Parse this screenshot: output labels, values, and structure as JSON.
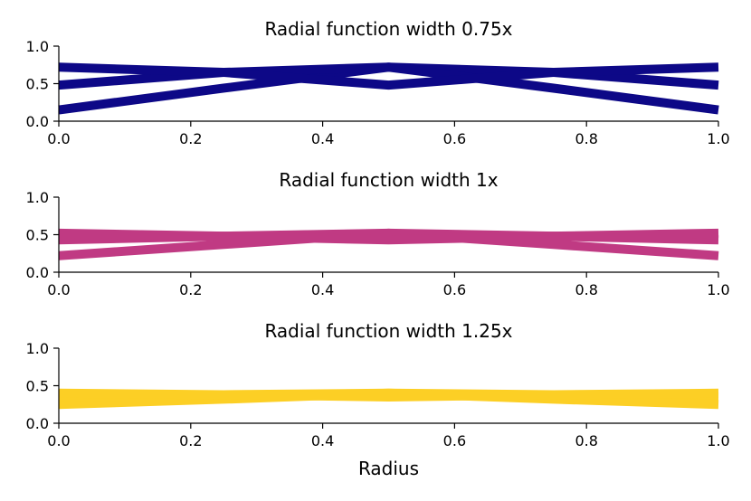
{
  "chart_data": [
    {
      "type": "line",
      "title": "Radial function width 0.75x",
      "xlabel": "",
      "ylabel": "",
      "xlim": [
        0.0,
        1.0
      ],
      "ylim": [
        0.0,
        1.0
      ],
      "xticks": [
        "0.0",
        "0.2",
        "0.4",
        "0.6",
        "0.8",
        "1.0"
      ],
      "yticks": [
        "0.0",
        "0.5",
        "1.0"
      ],
      "grid": false,
      "color": "#0d0887",
      "series": [
        {
          "x": [
            0.0,
            0.25,
            0.5,
            0.75,
            1.0
          ],
          "values": [
            0.15,
            0.44,
            0.72,
            0.65,
            0.48
          ]
        },
        {
          "x": [
            0.0,
            0.25,
            0.5,
            0.75,
            1.0
          ],
          "values": [
            0.48,
            0.65,
            0.72,
            0.44,
            0.15
          ]
        },
        {
          "x": [
            0.0,
            0.25,
            0.5,
            0.75,
            1.0
          ],
          "values": [
            0.72,
            0.65,
            0.48,
            0.65,
            0.72
          ]
        }
      ]
    },
    {
      "type": "line",
      "title": "Radial function width 1x",
      "xlabel": "",
      "ylabel": "",
      "xlim": [
        0.0,
        1.0
      ],
      "ylim": [
        0.0,
        1.0
      ],
      "xticks": [
        "0.0",
        "0.2",
        "0.4",
        "0.6",
        "0.8",
        "1.0"
      ],
      "yticks": [
        "0.0",
        "0.5",
        "1.0"
      ],
      "grid": false,
      "color": "#c03a83",
      "series": [
        {
          "x": [
            0.0,
            0.25,
            0.5,
            0.75,
            1.0
          ],
          "values": [
            0.22,
            0.37,
            0.52,
            0.48,
            0.43
          ]
        },
        {
          "x": [
            0.0,
            0.25,
            0.5,
            0.75,
            1.0
          ],
          "values": [
            0.43,
            0.48,
            0.52,
            0.37,
            0.22
          ]
        },
        {
          "x": [
            0.0,
            0.25,
            0.5,
            0.75,
            1.0
          ],
          "values": [
            0.52,
            0.48,
            0.43,
            0.48,
            0.52
          ]
        }
      ]
    },
    {
      "type": "line",
      "title": "Radial function width 1.25x",
      "xlabel": "Radius",
      "ylabel": "",
      "xlim": [
        0.0,
        1.0
      ],
      "ylim": [
        0.0,
        1.0
      ],
      "xticks": [
        "0.0",
        "0.2",
        "0.4",
        "0.6",
        "0.8",
        "1.0"
      ],
      "yticks": [
        "0.0",
        "0.5",
        "1.0"
      ],
      "grid": false,
      "color": "#fccf25",
      "series": [
        {
          "x": [
            0.0,
            0.25,
            0.5,
            0.75,
            1.0
          ],
          "values": [
            0.25,
            0.32,
            0.4,
            0.38,
            0.35
          ]
        },
        {
          "x": [
            0.0,
            0.25,
            0.5,
            0.75,
            1.0
          ],
          "values": [
            0.35,
            0.38,
            0.4,
            0.32,
            0.25
          ]
        },
        {
          "x": [
            0.0,
            0.25,
            0.5,
            0.75,
            1.0
          ],
          "values": [
            0.4,
            0.38,
            0.35,
            0.38,
            0.4
          ]
        }
      ]
    }
  ]
}
